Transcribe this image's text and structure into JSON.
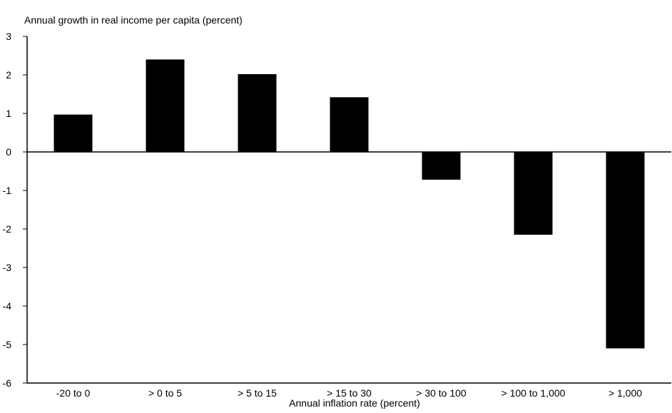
{
  "chart_data": {
    "type": "bar",
    "title": "",
    "ylabel": "Annual growth in real income per capita (percent)",
    "xlabel": "Annual inflation rate (percent)",
    "categories": [
      "-20 to 0",
      "> 0 to 5",
      "> 5 to 15",
      "> 15 to 30",
      "> 30 to 100",
      "> 100 to 1,000",
      "> 1,000"
    ],
    "values": [
      0.97,
      2.4,
      2.02,
      1.42,
      -0.72,
      -2.15,
      -5.1
    ],
    "ylim": [
      -6,
      3
    ],
    "yticks": [
      3,
      2,
      1,
      0,
      -1,
      -2,
      -3,
      -4,
      -5,
      -6
    ],
    "grid": false,
    "bar_color": "#000000",
    "legend": "none"
  }
}
